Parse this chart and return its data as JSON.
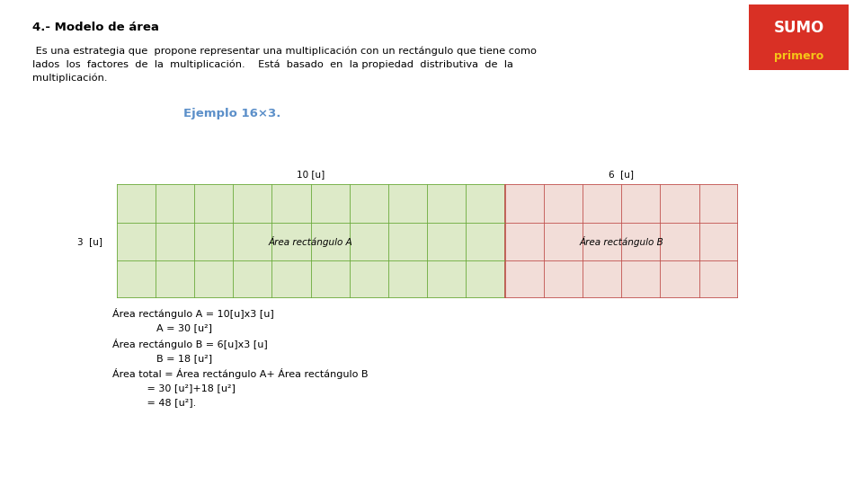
{
  "background_color": "#ffffff",
  "title": "4.- Modelo de área",
  "title_fontsize": 9.5,
  "body_text1": " Es una estrategia que  propone representar una multiplicación con un rectángulo que tiene como\nlados  los  factores  de  la  multiplicación.    Está  basado  en  la propiedad  distributiva  de  la\nmultiplicación.",
  "example_label": "Ejemplo 16×3.",
  "rect_A_color": "#ddeac8",
  "rect_A_border": "#6aaa3a",
  "rect_B_color": "#f2ddd8",
  "rect_B_border": "#c0504d",
  "grid_color_A": "#6aaa3a",
  "grid_color_B": "#c0504d",
  "label_10u": "10 [u]",
  "label_6u": "6  [u]",
  "label_3u": "3  [u]",
  "area_A_label": "Área rectángulo A",
  "area_B_label": "Área rectángulo B",
  "sumo_bg": "#d93025",
  "sumo_text": "SUMO",
  "primero_text": "primero",
  "primero_color": "#f5c518",
  "formula_lines": [
    "Área rectángulo A = 10[u]x3 [u]",
    "              A = 30 [u²]",
    "Área rectángulo B = 6[u]x3 [u]",
    "              B = 18 [u²]",
    "Área total = Área rectángulo A+ Área rectángulo B",
    "           = 30 [u²]+18 [u²]",
    "           = 48 [u²]."
  ]
}
